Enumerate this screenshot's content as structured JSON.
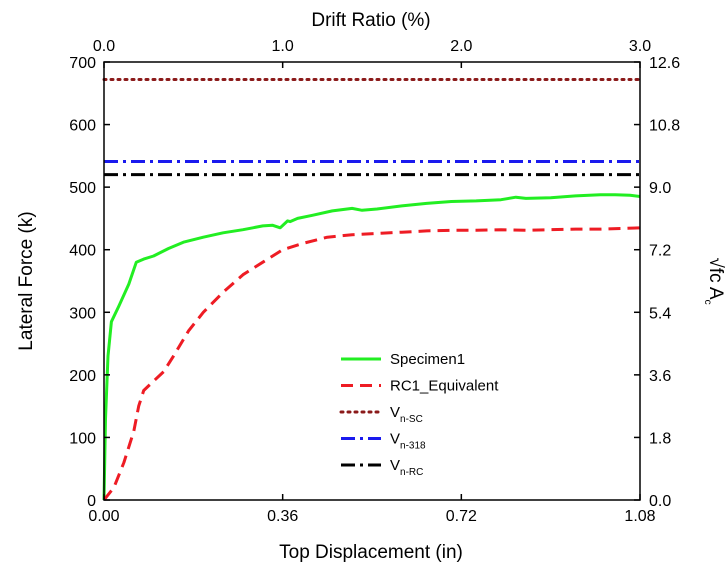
{
  "chart_data": {
    "type": "line",
    "xlabel": "Top Displacement (in)",
    "ylabel": "Lateral Force (k)",
    "x2label": "Drift Ratio (%)",
    "y2label": "√fc A",
    "y2label_sub": "c",
    "xlim": [
      0,
      1.08
    ],
    "ylim": [
      0,
      700
    ],
    "x2lim": [
      0,
      3.0
    ],
    "y2lim": [
      0,
      12.6
    ],
    "xticks": [
      "0.00",
      "0.36",
      "0.72",
      "1.08"
    ],
    "xtick_values": [
      0,
      0.36,
      0.72,
      1.08
    ],
    "yticks": [
      "0",
      "100",
      "200",
      "300",
      "400",
      "500",
      "600",
      "700"
    ],
    "ytick_values": [
      0,
      100,
      200,
      300,
      400,
      500,
      600,
      700
    ],
    "x2ticks": [
      "0.0",
      "1.0",
      "2.0",
      "3.0"
    ],
    "x2tick_values": [
      0,
      1.0,
      2.0,
      3.0
    ],
    "y2ticks": [
      "0.0",
      "1.8",
      "3.6",
      "5.4",
      "7.2",
      "9.0",
      "10.8",
      "12.6"
    ],
    "y2tick_values": [
      0,
      1.8,
      3.6,
      5.4,
      7.2,
      9.0,
      10.8,
      12.6
    ],
    "grid": false,
    "legend_position": "lower-center",
    "series": [
      {
        "name": "Specimen1",
        "name_sub": "",
        "color": "#22ee22",
        "style": "solid",
        "x": [
          0,
          0.003,
          0.008,
          0.015,
          0.03,
          0.05,
          0.065,
          0.08,
          0.1,
          0.13,
          0.16,
          0.2,
          0.24,
          0.28,
          0.3,
          0.32,
          0.34,
          0.355,
          0.37,
          0.375,
          0.39,
          0.42,
          0.46,
          0.5,
          0.52,
          0.55,
          0.6,
          0.65,
          0.7,
          0.75,
          0.8,
          0.83,
          0.85,
          0.9,
          0.95,
          1.0,
          1.03,
          1.06,
          1.08
        ],
        "y": [
          0,
          130,
          230,
          285,
          310,
          345,
          380,
          385,
          390,
          402,
          412,
          420,
          427,
          432,
          435,
          438,
          439,
          435,
          446,
          445,
          450,
          455,
          462,
          466,
          463,
          465,
          470,
          474,
          477,
          478,
          480,
          484,
          482,
          483,
          486,
          488,
          488,
          487,
          485
        ]
      },
      {
        "name": "RC1_Equivalent",
        "name_sub": "",
        "color": "#ee1c24",
        "style": "dashed",
        "x": [
          0,
          0.02,
          0.04,
          0.06,
          0.07,
          0.08,
          0.1,
          0.12,
          0.14,
          0.17,
          0.2,
          0.24,
          0.28,
          0.32,
          0.36,
          0.4,
          0.45,
          0.5,
          0.55,
          0.6,
          0.65,
          0.7,
          0.75,
          0.8,
          0.85,
          0.9,
          0.95,
          1.0,
          1.05,
          1.08
        ],
        "y": [
          0,
          20,
          60,
          110,
          150,
          175,
          190,
          205,
          230,
          270,
          300,
          332,
          360,
          380,
          400,
          410,
          420,
          424,
          426,
          428,
          430,
          431,
          431,
          432,
          431,
          432,
          433,
          433,
          434,
          435
        ]
      },
      {
        "name": "V",
        "name_sub": "n-SC",
        "color": "#8b1a1a",
        "style": "dotted",
        "x": [
          0,
          1.08
        ],
        "y": [
          672,
          672
        ]
      },
      {
        "name": "V",
        "name_sub": "n-318",
        "color": "#1a1aee",
        "style": "dashdot",
        "x": [
          0,
          1.08
        ],
        "y": [
          541,
          541
        ]
      },
      {
        "name": "V",
        "name_sub": "n-RC",
        "color": "#000000",
        "style": "dashdot",
        "x": [
          0,
          1.08
        ],
        "y": [
          520,
          520
        ]
      }
    ]
  }
}
